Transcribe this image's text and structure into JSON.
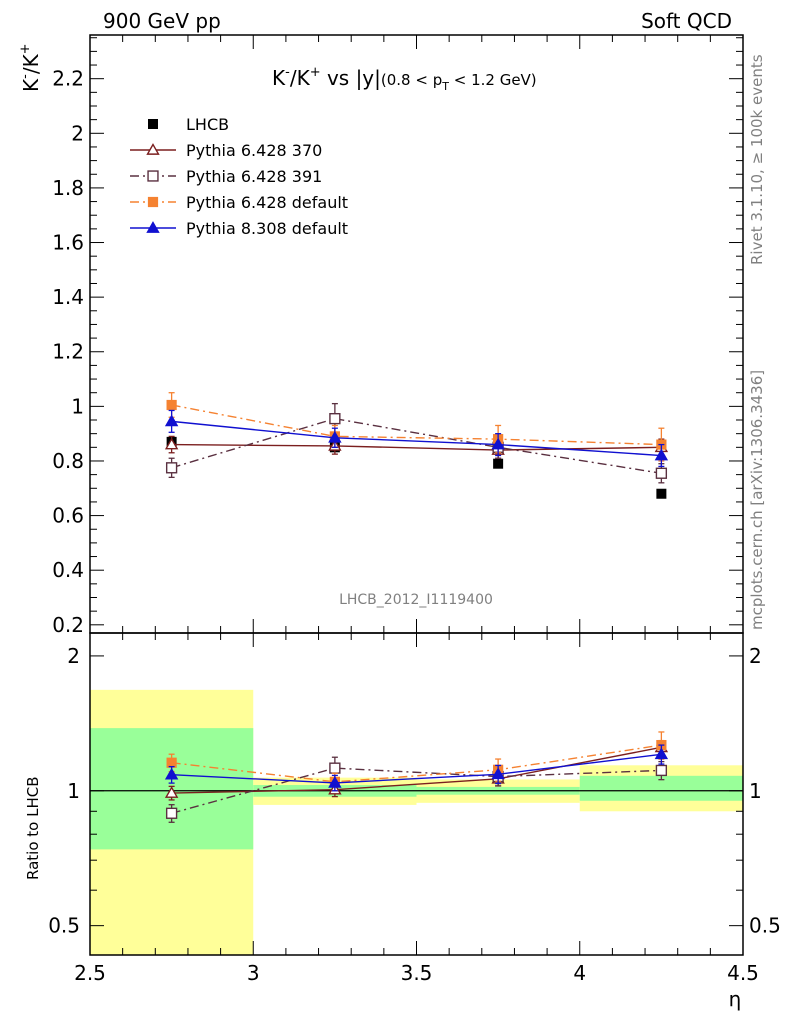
{
  "header": {
    "left": "900 GeV pp",
    "right": "Soft QCD"
  },
  "side_labels": {
    "rivet": "Rivet 3.1.10, ≥ 100k events",
    "mcplots": "mcplots.cern.ch [arXiv:1306.3436]"
  },
  "chart_data": {
    "type": "scatter",
    "title_parts": {
      "main_a": "K",
      "main_a_sup": "-",
      "main_b": "/K",
      "main_b_sup": "+",
      "main_c": " vs |y|",
      "cond_a": "(0.8 < p",
      "cond_sub": "T",
      "cond_b": " < 1.2 GeV)"
    },
    "ylabel_parts": {
      "a": "K",
      "a_sup": "-",
      "b": "/K",
      "b_sup": "+"
    },
    "ratio_ylabel": "Ratio to LHCB",
    "xlabel": "η",
    "analysis_label": "LHCB_2012_I1119400",
    "xlim": [
      2.5,
      4.5
    ],
    "ylim": [
      0.17,
      2.36
    ],
    "ratio_ylim": [
      0.43,
      2.25
    ],
    "ratio_log": true,
    "x_ticks": [
      2.5,
      3,
      3.5,
      4,
      4.5
    ],
    "x_tick_labels": [
      "2.5",
      "3",
      "3.5",
      "4",
      "4.5"
    ],
    "y_ticks": [
      0.2,
      0.4,
      0.6,
      0.8,
      1,
      1.2,
      1.4,
      1.6,
      1.8,
      2,
      2.2
    ],
    "y_tick_labels": [
      "0.2",
      "0.4",
      "0.6",
      "0.8",
      "1",
      "1.2",
      "1.4",
      "1.6",
      "1.8",
      "2",
      "2.2"
    ],
    "ratio_ticks": [
      0.5,
      1,
      2
    ],
    "ratio_tick_labels": [
      "0.5",
      "1",
      "2"
    ],
    "bins": [
      [
        2.5,
        3.0
      ],
      [
        3.0,
        3.5
      ],
      [
        3.5,
        4.0
      ],
      [
        4.0,
        4.5
      ]
    ],
    "x": [
      2.75,
      3.25,
      3.75,
      4.25
    ],
    "legend_position": "top-left",
    "reference": {
      "name": "LHCB",
      "values": [
        0.87,
        0.85,
        0.79,
        0.68
      ],
      "color": "#000000",
      "band_green_ratio": [
        [
          0.74,
          1.38
        ],
        [
          0.97,
          1.03
        ],
        [
          0.98,
          1.02
        ],
        [
          0.95,
          1.08
        ]
      ],
      "band_yellow_ratio": [
        [
          0.4,
          1.68
        ],
        [
          0.93,
          1.07
        ],
        [
          0.94,
          1.06
        ],
        [
          0.9,
          1.14
        ]
      ]
    },
    "series": [
      {
        "name": "Pythia 6.428 370",
        "values": [
          0.86,
          0.855,
          0.84,
          0.85
        ],
        "errors": [
          0.03,
          0.03,
          0.03,
          0.03
        ],
        "color": "#7b1f1f",
        "marker": "open-triangle",
        "dash": "solid"
      },
      {
        "name": "Pythia 6.428 391",
        "values": [
          0.775,
          0.955,
          0.85,
          0.755
        ],
        "errors": [
          0.035,
          0.055,
          0.04,
          0.035
        ],
        "color": "#5a3040",
        "marker": "open-square",
        "dash": "dashdot"
      },
      {
        "name": "Pythia 6.428 default",
        "values": [
          1.005,
          0.89,
          0.88,
          0.86
        ],
        "errors": [
          0.045,
          0.04,
          0.05,
          0.06
        ],
        "color": "#f58231",
        "marker": "filled-square",
        "dash": "dashdot"
      },
      {
        "name": "Pythia 8.308 default",
        "values": [
          0.945,
          0.885,
          0.86,
          0.82
        ],
        "errors": [
          0.04,
          0.035,
          0.04,
          0.04
        ],
        "color": "#1010d0",
        "marker": "filled-triangle",
        "dash": "solid"
      }
    ]
  }
}
